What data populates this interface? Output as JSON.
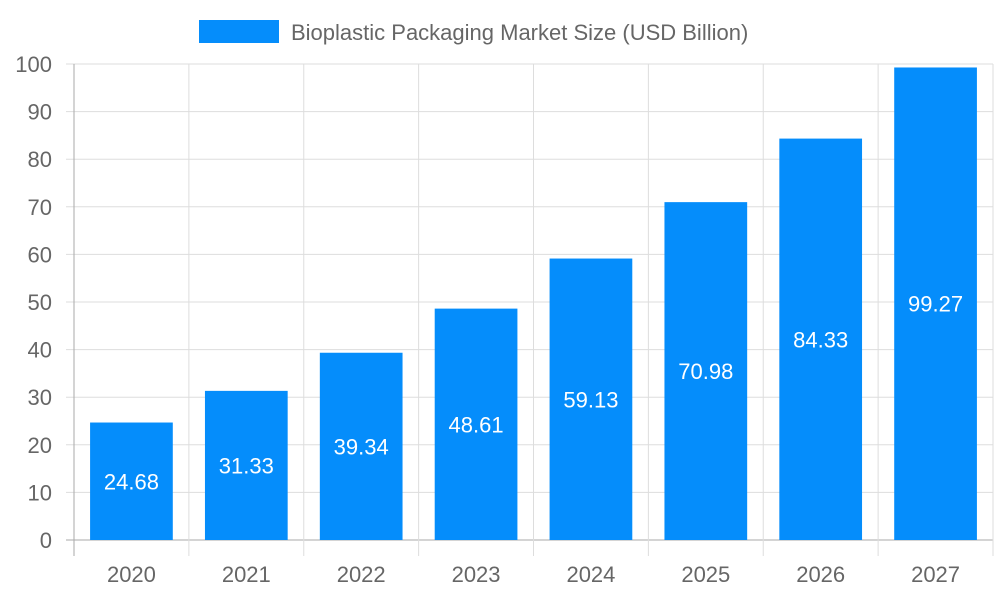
{
  "chart_data": {
    "type": "bar",
    "title": "",
    "xlabel": "",
    "ylabel": "",
    "categories": [
      "2020",
      "2021",
      "2022",
      "2023",
      "2024",
      "2025",
      "2026",
      "2027"
    ],
    "series": [
      {
        "name": "Bioplastic Packaging Market Size (USD Billion)",
        "values": [
          24.68,
          31.33,
          39.34,
          48.61,
          59.13,
          70.98,
          84.33,
          99.27
        ]
      }
    ],
    "ylim": [
      0,
      100
    ],
    "yticks": [
      0,
      10,
      20,
      30,
      40,
      50,
      60,
      70,
      80,
      90,
      100
    ],
    "grid": true,
    "legend": "top-center",
    "colors": {
      "bar": "#058DFB",
      "grid": "#DDDDDD",
      "axis": "#AAAAAA",
      "text": "#666666",
      "label": "#FFFFFF"
    }
  }
}
